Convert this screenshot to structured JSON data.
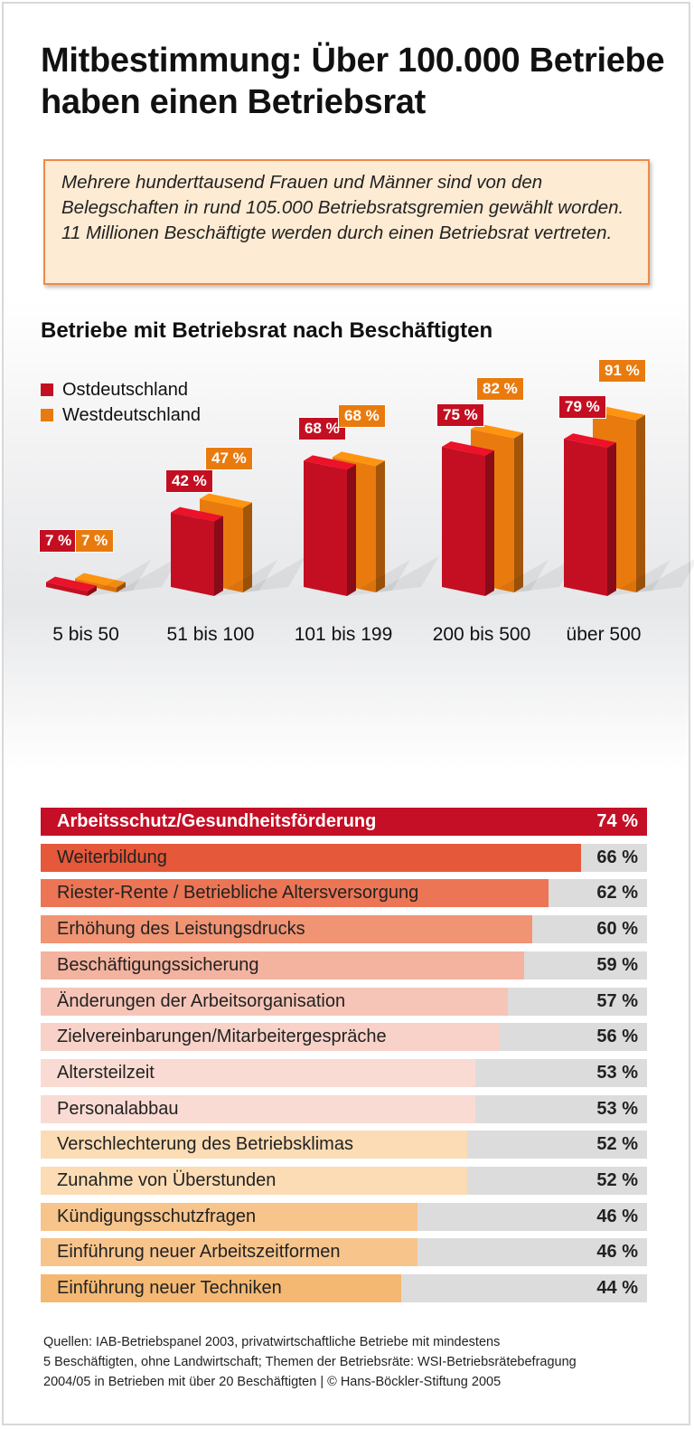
{
  "title": "Mitbestimmung: Über 100.000 Betriebe haben einen Betriebsrat",
  "intro": "Mehrere hunderttausend Frauen und Männer sind von den Belegschaften in rund 105.000 Betriebsratsgremien gewählt worden. 11 Millionen Beschäftigte werden durch einen Betriebsrat vertreten.",
  "chart_data": [
    {
      "type": "bar",
      "title": "Betriebe mit Betriebsrat nach Beschäftigten",
      "categories": [
        "5 bis 50",
        "51 bis 100",
        "101 bis 199",
        "200 bis 500",
        "über 500"
      ],
      "series": [
        {
          "name": "Ostdeutschland",
          "color": "#c40f22",
          "values": [
            7,
            42,
            68,
            75,
            79
          ],
          "labels": [
            "7 %",
            "42 %",
            "68 %",
            "75 %",
            "79 %"
          ]
        },
        {
          "name": "Westdeutschland",
          "color": "#e97b0e",
          "values": [
            7,
            47,
            68,
            82,
            91
          ],
          "labels": [
            "7 %",
            "47 %",
            "68 %",
            "82 %",
            "91 %"
          ]
        }
      ],
      "legend": "top-left",
      "ylim": [
        0,
        100
      ]
    },
    {
      "type": "bar",
      "orientation": "horizontal",
      "xlim": [
        0,
        74
      ],
      "items": [
        {
          "label": "Arbeitsschutz/Gesundheitsförderung",
          "value": 74,
          "text": "74 %",
          "color": "#c40f26"
        },
        {
          "label": "Weiterbildung",
          "value": 66,
          "text": "66 %",
          "color": "#e5583a"
        },
        {
          "label": "Riester-Rente / Betriebliche Altersversorgung",
          "value": 62,
          "text": "62 %",
          "color": "#eb7555"
        },
        {
          "label": "Erhöhung des Leistungsdrucks",
          "value": 60,
          "text": "60 %",
          "color": "#f09474"
        },
        {
          "label": "Beschäftigungssicherung",
          "value": 59,
          "text": "59 %",
          "color": "#f4b39f"
        },
        {
          "label": "Änderungen der Arbeitsorganisation",
          "value": 57,
          "text": "57 %",
          "color": "#f6c5b7"
        },
        {
          "label": "Zielvereinbarungen/Mitarbeitergespräche",
          "value": 56,
          "text": "56 %",
          "color": "#f8d2c8"
        },
        {
          "label": "Altersteilzeit",
          "value": 53,
          "text": "53 %",
          "color": "#f9dbd3"
        },
        {
          "label": "Personalabbau",
          "value": 53,
          "text": "53 %",
          "color": "#f9dbd3"
        },
        {
          "label": "Verschlechterung des Betriebsklimas",
          "value": 52,
          "text": "52 %",
          "color": "#fcdcb4"
        },
        {
          "label": "Zunahme von Überstunden",
          "value": 52,
          "text": "52 %",
          "color": "#fcdcb4"
        },
        {
          "label": "Kündigungsschutzfragen",
          "value": 46,
          "text": "46 %",
          "color": "#f7c48c"
        },
        {
          "label": "Einführung neuer Arbeitszeitformen",
          "value": 46,
          "text": "46 %",
          "color": "#f7c48c"
        },
        {
          "label": "Einführung neuer Techniken",
          "value": 44,
          "text": "44 %",
          "color": "#f4b872"
        }
      ]
    }
  ],
  "footer": [
    "Quellen: IAB-Betriebspanel 2003, privatwirtschaftliche Betriebe mit mindestens",
    "5 Beschäftigten, ohne Landwirtschaft; Themen der Betriebsräte: WSI-Betriebsrätebefragung",
    "2004/05 in Betrieben mit über 20 Beschäftigten | © Hans-Böckler-Stiftung 2005"
  ]
}
